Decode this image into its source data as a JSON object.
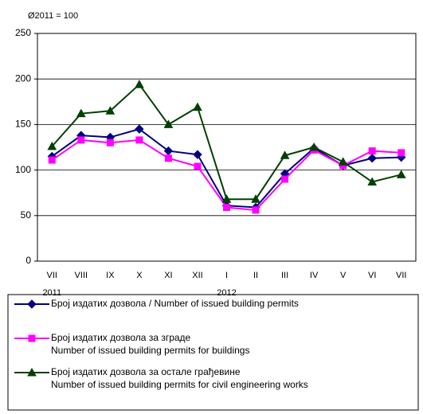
{
  "chart_data": {
    "type": "line",
    "subtitle": "Ø2011 = 100",
    "categories": [
      "VII",
      "VIII",
      "IX",
      "X",
      "XI",
      "XII",
      "I",
      "II",
      "III",
      "IV",
      "V",
      "VI",
      "VII"
    ],
    "years": [
      {
        "label": "2011",
        "at": 0
      },
      {
        "label": "2012",
        "at": 6
      }
    ],
    "ylim": [
      0,
      250
    ],
    "yticks": [
      0,
      50,
      100,
      150,
      200,
      250
    ],
    "grid": true,
    "series": [
      {
        "name": "Број издатих дозвола / Number  of  issued building permits",
        "color": "#000080",
        "marker": "diamond",
        "values": [
          115,
          138,
          136,
          145,
          121,
          117,
          61,
          59,
          96,
          124,
          105,
          113,
          114
        ]
      },
      {
        "name": "Број издатих дозвола за зграде\nNumber  of  issued building permits for buildings",
        "color": "#ff00ff",
        "marker": "square",
        "values": [
          111,
          133,
          130,
          133,
          113,
          104,
          59,
          56,
          90,
          122,
          105,
          121,
          119
        ]
      },
      {
        "name": "Број издатих дозвола за остале грађевине\nNumber  of  issued building permits for civil engineering works",
        "color": "#004000",
        "marker": "triangle",
        "values": [
          126,
          162,
          165,
          194,
          150,
          169,
          68,
          68,
          116,
          125,
          109,
          87,
          95
        ]
      }
    ]
  }
}
